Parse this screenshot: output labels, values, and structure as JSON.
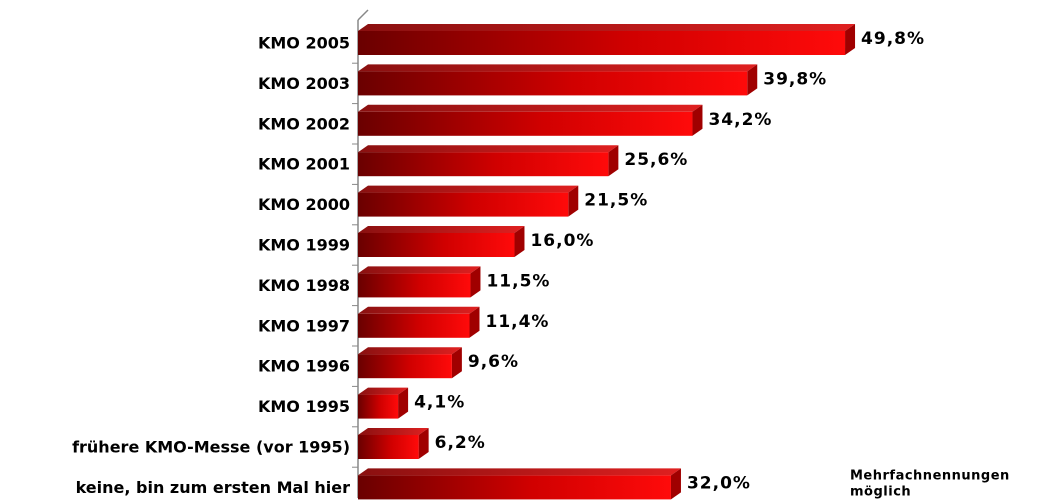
{
  "chart_data": {
    "type": "bar",
    "orientation": "horizontal",
    "categories": [
      "KMO 2005",
      "KMO 2003",
      "KMO 2002",
      "KMO 2001",
      "KMO 2000",
      "KMO 1999",
      "KMO 1998",
      "KMO 1997",
      "KMO 1996",
      "KMO 1995",
      "frühere KMO-Messe (vor 1995)",
      "keine, bin zum ersten Mal hier"
    ],
    "values": [
      49.8,
      39.8,
      34.2,
      25.6,
      21.5,
      16.0,
      11.5,
      11.4,
      9.6,
      4.1,
      6.2,
      32.0
    ],
    "value_labels": [
      "49,8%",
      "39,8%",
      "34,2%",
      "25,6%",
      "21,5%",
      "16,0%",
      "11,5%",
      "11,4%",
      "9,6%",
      "4,1%",
      "6,2%",
      "32,0%"
    ],
    "color": "#ff0000",
    "xlim": [
      0,
      50
    ],
    "annotation": [
      "Mehrfachnennungen",
      "möglich"
    ]
  }
}
